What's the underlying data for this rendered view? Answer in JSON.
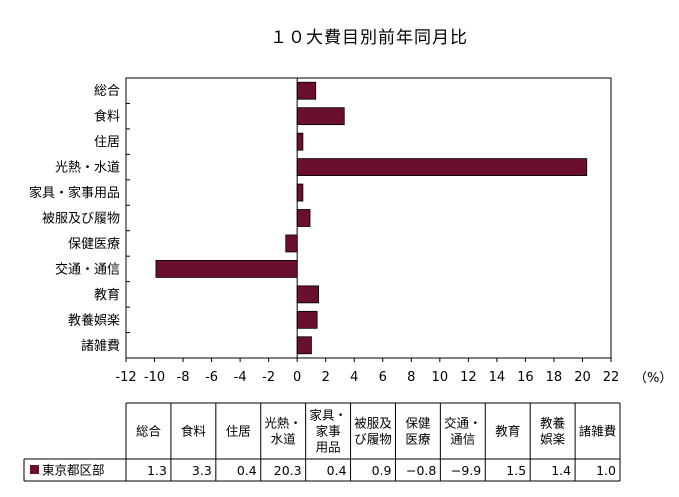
{
  "title": "１０大費目別前年同月比",
  "chart_data": {
    "type": "bar",
    "orientation": "horizontal",
    "title": "１０大費目別前年同月比",
    "unit": "（%）",
    "categories": [
      "総合",
      "食料",
      "住居",
      "光熱・水道",
      "家具・家事用品",
      "被服及び履物",
      "保健医療",
      "交通・通信",
      "教育",
      "教養娯楽",
      "諸雑費"
    ],
    "series": [
      {
        "name": "東京都区部",
        "values": [
          1.3,
          3.3,
          0.4,
          20.3,
          0.4,
          0.9,
          -0.8,
          -9.9,
          1.5,
          1.4,
          1.0
        ]
      }
    ],
    "xlim": [
      -12,
      22
    ],
    "xticks": [
      -12,
      -10,
      -8,
      -6,
      -4,
      -2,
      0,
      2,
      4,
      6,
      8,
      10,
      12,
      14,
      16,
      18,
      20,
      22
    ],
    "grid": false,
    "bar_color": "#6b0f2e"
  },
  "table": {
    "headers": [
      [
        "総合"
      ],
      [
        "食料"
      ],
      [
        "住居"
      ],
      [
        "光熱・",
        "水道"
      ],
      [
        "家具・",
        "家事",
        "用品"
      ],
      [
        "被服及",
        "び履物"
      ],
      [
        "保健",
        "医療"
      ],
      [
        "交通・",
        "通信"
      ],
      [
        "教育"
      ],
      [
        "教養",
        "娯楽"
      ],
      [
        "諸雑費"
      ]
    ],
    "row_label": "東京都区部",
    "row_values": [
      "1.3",
      "3.3",
      "0.4",
      "20.3",
      "0.4",
      "0.9",
      "−0.8",
      "−9.9",
      "1.5",
      "1.4",
      "1.0"
    ]
  }
}
